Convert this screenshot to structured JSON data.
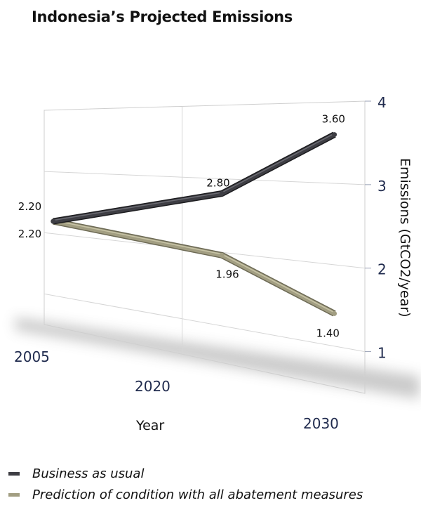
{
  "colors": {
    "bau": "#3e3e44",
    "abatement": "#a29e82",
    "axis_text": "#1f2a4d"
  },
  "chart_data": {
    "type": "line",
    "title": "Indonesia’s Projected Emissions",
    "xlabel": "Year",
    "ylabel": "Emissions (GtCO2/year)",
    "x": [
      2005,
      2020,
      2030
    ],
    "x_tick_labels": [
      "2005",
      "2020",
      "2030"
    ],
    "y_ticks": [
      1,
      2,
      3,
      4
    ],
    "y_tick_labels": [
      "1",
      "2",
      "3",
      "4"
    ],
    "ylim": [
      1,
      4
    ],
    "grid": true,
    "legend_position": "bottom",
    "series": [
      {
        "name": "Business as usual",
        "values": [
          2.2,
          2.8,
          3.6
        ],
        "labels": [
          "2.20",
          "2.80",
          "3.60"
        ]
      },
      {
        "name": "Prediction of condition with all abatement measures",
        "values": [
          2.2,
          1.96,
          1.4
        ],
        "labels": [
          "2.20",
          "1.96",
          "1.40"
        ]
      }
    ]
  }
}
